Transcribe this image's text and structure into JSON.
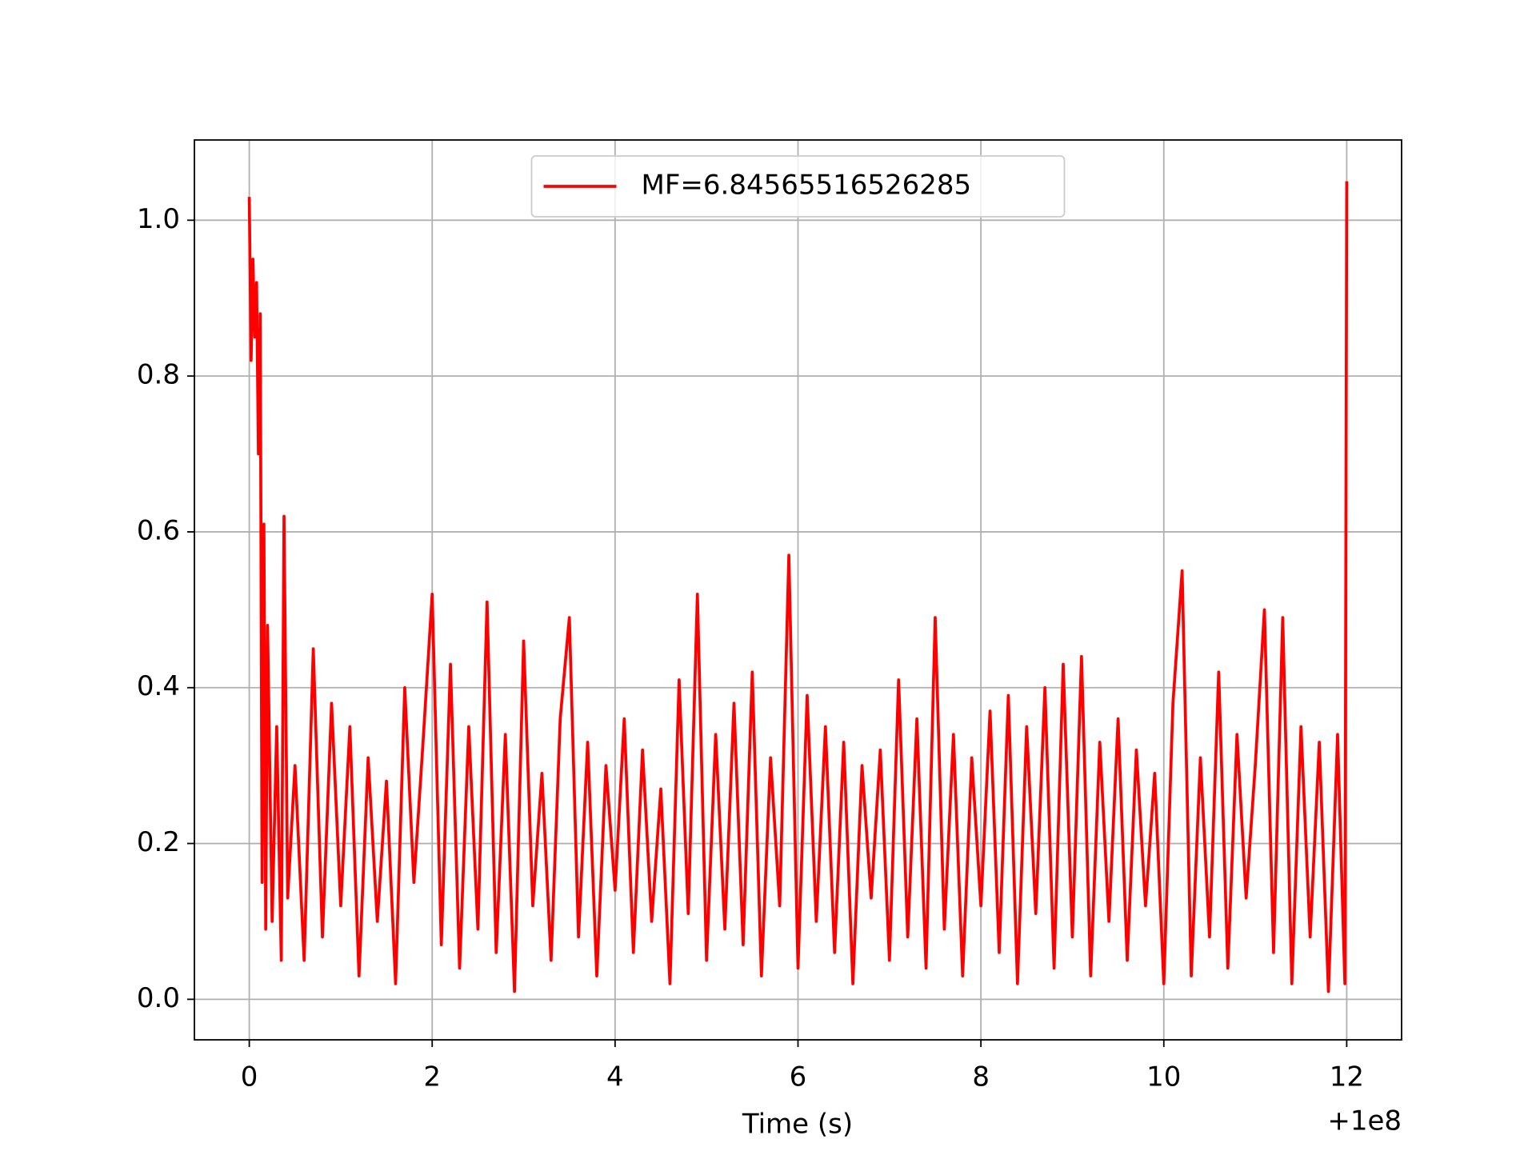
{
  "chart_data": {
    "type": "line",
    "x_label": "Time (s)",
    "x_offset_label": "+1e8",
    "xlim": [
      -0.6,
      12.6
    ],
    "ylim": [
      -0.052,
      1.103
    ],
    "xticks": [
      0,
      2,
      4,
      6,
      8,
      10,
      12
    ],
    "yticks": [
      {
        "value": 0,
        "label": "0.0"
      },
      0.2,
      0.4,
      0.6,
      0.8,
      {
        "value": 1,
        "label": "1.0"
      }
    ],
    "grid": true,
    "legend": "upper center",
    "x": [
      0,
      0.02,
      0.04,
      0.06,
      0.08,
      0.1,
      0.12,
      0.14,
      0.16,
      0.18,
      0.2,
      0.25,
      0.3,
      0.35,
      0.38,
      0.42,
      0.5,
      0.6,
      0.7,
      0.8,
      0.9,
      1.0,
      1.1,
      1.2,
      1.3,
      1.4,
      1.5,
      1.6,
      1.7,
      1.8,
      1.9,
      2.0,
      2.1,
      2.2,
      2.3,
      2.4,
      2.5,
      2.6,
      2.7,
      2.8,
      2.9,
      3.0,
      3.1,
      3.2,
      3.3,
      3.4,
      3.5,
      3.6,
      3.7,
      3.8,
      3.9,
      4.0,
      4.1,
      4.2,
      4.3,
      4.4,
      4.5,
      4.6,
      4.7,
      4.8,
      4.9,
      5.0,
      5.1,
      5.2,
      5.3,
      5.4,
      5.5,
      5.6,
      5.7,
      5.8,
      5.9,
      6.0,
      6.1,
      6.2,
      6.3,
      6.4,
      6.5,
      6.6,
      6.7,
      6.8,
      6.9,
      7.0,
      7.1,
      7.2,
      7.3,
      7.4,
      7.5,
      7.6,
      7.7,
      7.8,
      7.9,
      8.0,
      8.1,
      8.2,
      8.3,
      8.4,
      8.5,
      8.6,
      8.7,
      8.8,
      8.9,
      9.0,
      9.1,
      9.2,
      9.3,
      9.4,
      9.5,
      9.6,
      9.7,
      9.8,
      9.9,
      10.0,
      10.1,
      10.2,
      10.3,
      10.4,
      10.5,
      10.6,
      10.7,
      10.8,
      10.9,
      11.0,
      11.1,
      11.2,
      11.3,
      11.4,
      11.5,
      11.6,
      11.7,
      11.8,
      11.9,
      11.98,
      12
    ],
    "series": [
      {
        "name": "MF=6.84565516526285",
        "color": "#ff0000",
        "values": [
          1.03,
          0.82,
          0.95,
          0.85,
          0.92,
          0.7,
          0.88,
          0.15,
          0.61,
          0.09,
          0.48,
          0.1,
          0.35,
          0.05,
          0.62,
          0.13,
          0.3,
          0.05,
          0.45,
          0.08,
          0.38,
          0.12,
          0.35,
          0.03,
          0.31,
          0.1,
          0.28,
          0.02,
          0.4,
          0.15,
          0.33,
          0.52,
          0.07,
          0.43,
          0.04,
          0.35,
          0.09,
          0.51,
          0.06,
          0.34,
          0.01,
          0.46,
          0.12,
          0.29,
          0.05,
          0.36,
          0.49,
          0.08,
          0.33,
          0.03,
          0.3,
          0.14,
          0.36,
          0.06,
          0.32,
          0.1,
          0.27,
          0.02,
          0.41,
          0.11,
          0.52,
          0.05,
          0.34,
          0.09,
          0.38,
          0.07,
          0.42,
          0.03,
          0.31,
          0.12,
          0.57,
          0.04,
          0.39,
          0.1,
          0.35,
          0.06,
          0.33,
          0.02,
          0.3,
          0.13,
          0.32,
          0.05,
          0.41,
          0.08,
          0.36,
          0.04,
          0.49,
          0.09,
          0.34,
          0.03,
          0.31,
          0.12,
          0.37,
          0.06,
          0.39,
          0.02,
          0.35,
          0.11,
          0.4,
          0.04,
          0.43,
          0.08,
          0.44,
          0.03,
          0.33,
          0.1,
          0.36,
          0.05,
          0.32,
          0.12,
          0.29,
          0.02,
          0.38,
          0.55,
          0.03,
          0.31,
          0.08,
          0.42,
          0.04,
          0.34,
          0.13,
          0.3,
          0.5,
          0.06,
          0.49,
          0.02,
          0.35,
          0.08,
          0.33,
          0.01,
          0.34,
          0.02,
          1.05
        ]
      }
    ]
  }
}
